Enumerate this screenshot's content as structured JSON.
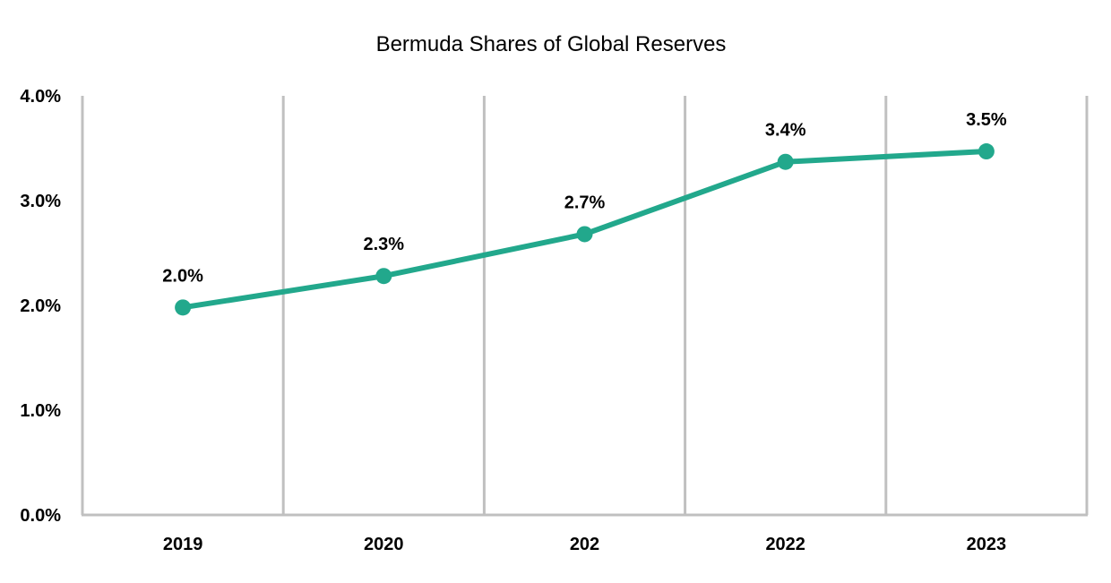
{
  "chart_data": {
    "type": "line",
    "title": "Bermuda Shares of Global Reserves",
    "xlabel": "",
    "ylabel": "",
    "categories": [
      "2019",
      "2020",
      "202",
      "2022",
      "2023"
    ],
    "values": [
      1.98,
      2.28,
      2.68,
      3.37,
      3.47
    ],
    "data_labels": [
      "2.0%",
      "2.3%",
      "2.7%",
      "3.4%",
      "3.5%"
    ],
    "ylim": [
      0,
      4
    ],
    "yticks": [
      0,
      1,
      2,
      3,
      4
    ],
    "ytick_labels": [
      "0.0%",
      "1.0%",
      "2.0%",
      "3.0%",
      "4.0%"
    ],
    "grid": "vertical",
    "legend": "none",
    "colors": {
      "line": "#22a88c",
      "grid": "#c0c0c0"
    }
  }
}
